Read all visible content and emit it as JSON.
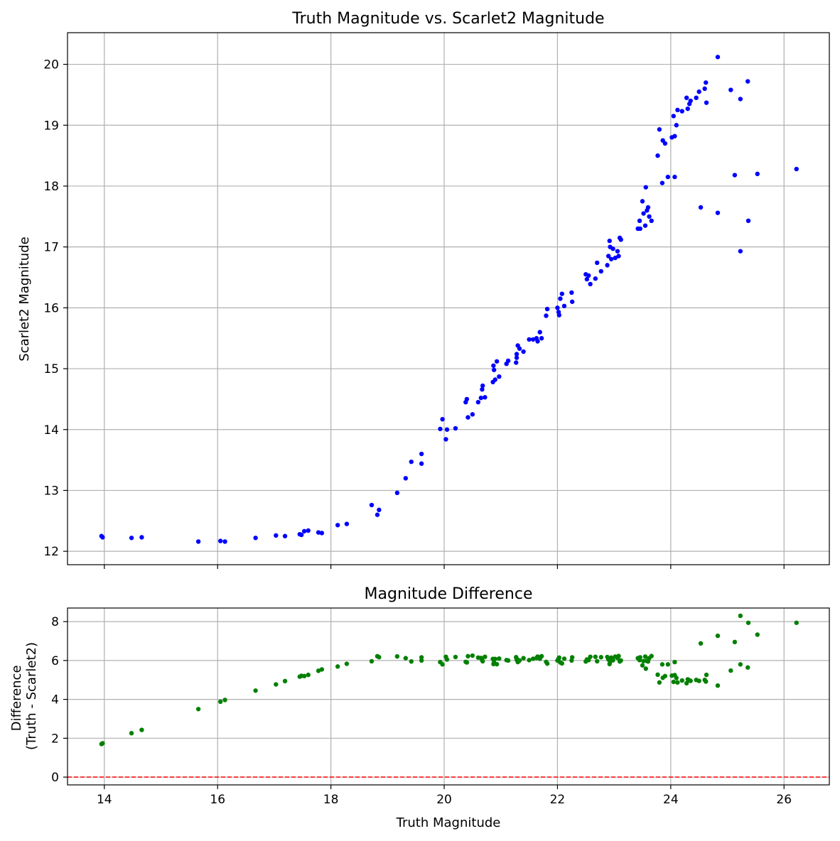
{
  "chart_data": [
    {
      "type": "scatter",
      "title": "Truth Magnitude vs. Scarlet2 Magnitude",
      "xlabel": "",
      "ylabel": "Scarlet2 Magnitude",
      "xlim": [
        13.35,
        26.8
      ],
      "ylim": [
        11.78,
        20.52
      ],
      "xticks": [
        14,
        16,
        18,
        20,
        22,
        24,
        26
      ],
      "yticks": [
        12,
        13,
        14,
        15,
        16,
        17,
        18,
        19,
        20
      ],
      "show_xtick_labels": false,
      "grid": true,
      "color": "#0000ff",
      "series": [
        {
          "points": [
            [
              13.95,
              12.25
            ],
            [
              13.97,
              12.23
            ],
            [
              14.48,
              12.22
            ],
            [
              14.66,
              12.23
            ],
            [
              15.66,
              12.16
            ],
            [
              16.05,
              12.17
            ],
            [
              16.13,
              12.16
            ],
            [
              16.67,
              12.22
            ],
            [
              17.03,
              12.26
            ],
            [
              17.19,
              12.25
            ],
            [
              17.45,
              12.28
            ],
            [
              17.48,
              12.27
            ],
            [
              17.53,
              12.33
            ],
            [
              17.6,
              12.34
            ],
            [
              17.78,
              12.31
            ],
            [
              17.84,
              12.3
            ],
            [
              18.12,
              12.43
            ],
            [
              18.28,
              12.45
            ],
            [
              18.72,
              12.76
            ],
            [
              18.82,
              12.6
            ],
            [
              18.85,
              12.68
            ],
            [
              19.17,
              12.96
            ],
            [
              19.32,
              13.2
            ],
            [
              19.42,
              13.47
            ],
            [
              19.6,
              13.6
            ],
            [
              19.6,
              13.44
            ],
            [
              19.93,
              14.01
            ],
            [
              19.97,
              14.17
            ],
            [
              20.03,
              13.84
            ],
            [
              20.05,
              14.0
            ],
            [
              20.2,
              14.02
            ],
            [
              20.38,
              14.45
            ],
            [
              20.4,
              14.5
            ],
            [
              20.42,
              14.2
            ],
            [
              20.5,
              14.25
            ],
            [
              20.6,
              14.45
            ],
            [
              20.65,
              14.52
            ],
            [
              20.67,
              14.66
            ],
            [
              20.68,
              14.72
            ],
            [
              20.72,
              14.53
            ],
            [
              20.86,
              14.78
            ],
            [
              20.87,
              15.05
            ],
            [
              20.88,
              14.98
            ],
            [
              20.9,
              14.82
            ],
            [
              20.93,
              15.12
            ],
            [
              20.97,
              14.87
            ],
            [
              21.1,
              15.08
            ],
            [
              21.13,
              15.13
            ],
            [
              21.27,
              15.1
            ],
            [
              21.28,
              15.18
            ],
            [
              21.28,
              15.24
            ],
            [
              21.3,
              15.38
            ],
            [
              21.33,
              15.33
            ],
            [
              21.4,
              15.28
            ],
            [
              21.5,
              15.48
            ],
            [
              21.57,
              15.48
            ],
            [
              21.63,
              15.5
            ],
            [
              21.65,
              15.45
            ],
            [
              21.69,
              15.6
            ],
            [
              21.72,
              15.5
            ],
            [
              21.8,
              15.87
            ],
            [
              21.82,
              15.98
            ],
            [
              22.0,
              16.0
            ],
            [
              22.02,
              15.93
            ],
            [
              22.03,
              15.88
            ],
            [
              22.05,
              16.15
            ],
            [
              22.08,
              16.23
            ],
            [
              22.12,
              16.03
            ],
            [
              22.25,
              16.25
            ],
            [
              22.26,
              16.1
            ],
            [
              22.5,
              16.55
            ],
            [
              22.52,
              16.47
            ],
            [
              22.55,
              16.53
            ],
            [
              22.58,
              16.39
            ],
            [
              22.67,
              16.48
            ],
            [
              22.7,
              16.74
            ],
            [
              22.77,
              16.6
            ],
            [
              22.88,
              16.7
            ],
            [
              22.9,
              16.85
            ],
            [
              22.92,
              17.1
            ],
            [
              22.93,
              17.0
            ],
            [
              22.95,
              16.8
            ],
            [
              22.98,
              16.97
            ],
            [
              23.02,
              16.82
            ],
            [
              23.06,
              16.93
            ],
            [
              23.1,
              17.15
            ],
            [
              23.12,
              17.12
            ],
            [
              23.08,
              16.85
            ],
            [
              23.42,
              17.3
            ],
            [
              23.45,
              17.43
            ],
            [
              23.46,
              17.3
            ],
            [
              23.5,
              17.75
            ],
            [
              23.52,
              17.55
            ],
            [
              23.55,
              17.35
            ],
            [
              23.56,
              17.98
            ],
            [
              23.58,
              17.6
            ],
            [
              23.6,
              17.65
            ],
            [
              23.62,
              17.5
            ],
            [
              23.66,
              17.43
            ],
            [
              23.77,
              18.5
            ],
            [
              23.8,
              18.93
            ],
            [
              23.85,
              18.05
            ],
            [
              23.86,
              18.75
            ],
            [
              23.9,
              18.7
            ],
            [
              23.95,
              18.15
            ],
            [
              24.02,
              18.8
            ],
            [
              24.05,
              19.15
            ],
            [
              24.07,
              18.82
            ],
            [
              24.07,
              18.15
            ],
            [
              24.1,
              19.0
            ],
            [
              24.12,
              19.25
            ],
            [
              24.2,
              19.23
            ],
            [
              24.28,
              19.45
            ],
            [
              24.3,
              19.27
            ],
            [
              24.33,
              19.35
            ],
            [
              24.35,
              19.4
            ],
            [
              24.45,
              19.45
            ],
            [
              24.5,
              19.55
            ],
            [
              24.53,
              17.65
            ],
            [
              24.6,
              19.6
            ],
            [
              24.62,
              19.7
            ],
            [
              24.63,
              19.37
            ],
            [
              24.83,
              20.12
            ],
            [
              24.83,
              17.56
            ],
            [
              25.06,
              19.58
            ],
            [
              25.13,
              18.18
            ],
            [
              25.23,
              19.43
            ],
            [
              25.23,
              16.93
            ],
            [
              25.36,
              19.72
            ],
            [
              25.37,
              17.43
            ],
            [
              25.53,
              18.2
            ],
            [
              26.22,
              18.28
            ]
          ]
        }
      ]
    },
    {
      "type": "scatter",
      "title": "Magnitude Difference",
      "xlabel": "Truth Magnitude",
      "ylabel": "Difference\n(Truth - Scarlet2)",
      "xlim": [
        13.35,
        26.8
      ],
      "ylim": [
        -0.4,
        8.7
      ],
      "xticks": [
        14,
        16,
        18,
        20,
        22,
        24,
        26
      ],
      "yticks": [
        0,
        2,
        4,
        6,
        8
      ],
      "show_xtick_labels": true,
      "grid": true,
      "color": "#008000",
      "reference_line": {
        "y": 0,
        "color": "#ff0000",
        "style": "dashed"
      },
      "series": [
        {
          "points": [
            [
              13.95,
              1.7
            ],
            [
              13.97,
              1.74
            ],
            [
              14.48,
              2.26
            ],
            [
              14.66,
              2.43
            ],
            [
              15.66,
              3.5
            ],
            [
              16.05,
              3.88
            ],
            [
              16.13,
              3.97
            ],
            [
              16.67,
              4.45
            ],
            [
              17.03,
              4.77
            ],
            [
              17.19,
              4.94
            ],
            [
              17.45,
              5.17
            ],
            [
              17.48,
              5.21
            ],
            [
              17.53,
              5.2
            ],
            [
              17.6,
              5.26
            ],
            [
              17.78,
              5.47
            ],
            [
              17.84,
              5.54
            ],
            [
              18.12,
              5.69
            ],
            [
              18.28,
              5.83
            ],
            [
              18.72,
              5.96
            ],
            [
              18.82,
              6.22
            ],
            [
              18.85,
              6.17
            ],
            [
              19.17,
              6.21
            ],
            [
              19.32,
              6.12
            ],
            [
              19.42,
              5.95
            ],
            [
              19.6,
              6.0
            ],
            [
              19.6,
              6.16
            ],
            [
              19.93,
              5.92
            ],
            [
              19.97,
              5.8
            ],
            [
              20.03,
              6.19
            ],
            [
              20.05,
              6.05
            ],
            [
              20.2,
              6.18
            ],
            [
              20.38,
              5.93
            ],
            [
              20.4,
              5.9
            ],
            [
              20.42,
              6.22
            ],
            [
              20.5,
              6.25
            ],
            [
              20.6,
              6.15
            ],
            [
              20.65,
              6.13
            ],
            [
              20.67,
              6.01
            ],
            [
              20.68,
              5.96
            ],
            [
              20.72,
              6.19
            ],
            [
              20.86,
              6.08
            ],
            [
              20.87,
              5.82
            ],
            [
              20.88,
              5.9
            ],
            [
              20.9,
              6.08
            ],
            [
              20.93,
              5.81
            ],
            [
              20.97,
              6.1
            ],
            [
              21.1,
              6.02
            ],
            [
              21.13,
              6.0
            ],
            [
              21.27,
              6.17
            ],
            [
              21.28,
              6.1
            ],
            [
              21.28,
              6.04
            ],
            [
              21.3,
              5.92
            ],
            [
              21.33,
              6.0
            ],
            [
              21.4,
              6.12
            ],
            [
              21.5,
              6.02
            ],
            [
              21.57,
              6.09
            ],
            [
              21.63,
              6.13
            ],
            [
              21.65,
              6.2
            ],
            [
              21.69,
              6.09
            ],
            [
              21.72,
              6.22
            ],
            [
              21.8,
              5.93
            ],
            [
              21.82,
              5.84
            ],
            [
              22.0,
              6.0
            ],
            [
              22.02,
              6.09
            ],
            [
              22.03,
              6.15
            ],
            [
              22.05,
              5.9
            ],
            [
              22.08,
              5.85
            ],
            [
              22.12,
              6.09
            ],
            [
              22.25,
              6.0
            ],
            [
              22.26,
              6.16
            ],
            [
              22.5,
              5.95
            ],
            [
              22.52,
              6.05
            ],
            [
              22.55,
              6.02
            ],
            [
              22.58,
              6.19
            ],
            [
              22.67,
              6.19
            ],
            [
              22.7,
              5.96
            ],
            [
              22.77,
              6.17
            ],
            [
              22.88,
              6.18
            ],
            [
              22.9,
              6.05
            ],
            [
              22.92,
              5.82
            ],
            [
              22.93,
              5.93
            ],
            [
              22.95,
              6.15
            ],
            [
              22.98,
              6.01
            ],
            [
              23.02,
              6.2
            ],
            [
              23.06,
              6.13
            ],
            [
              23.1,
              5.95
            ],
            [
              23.12,
              6.0
            ],
            [
              23.08,
              6.23
            ],
            [
              23.42,
              6.12
            ],
            [
              23.45,
              6.02
            ],
            [
              23.46,
              6.16
            ],
            [
              23.5,
              5.75
            ],
            [
              23.52,
              5.97
            ],
            [
              23.55,
              6.2
            ],
            [
              23.56,
              5.58
            ],
            [
              23.58,
              5.98
            ],
            [
              23.6,
              5.95
            ],
            [
              23.62,
              6.12
            ],
            [
              23.66,
              6.23
            ],
            [
              23.77,
              5.27
            ],
            [
              23.8,
              4.87
            ],
            [
              23.85,
              5.8
            ],
            [
              23.86,
              5.11
            ],
            [
              23.9,
              5.2
            ],
            [
              23.95,
              5.8
            ],
            [
              24.02,
              5.22
            ],
            [
              24.05,
              4.9
            ],
            [
              24.07,
              5.25
            ],
            [
              24.07,
              5.92
            ],
            [
              24.1,
              5.1
            ],
            [
              24.12,
              4.87
            ],
            [
              24.2,
              4.97
            ],
            [
              24.28,
              4.83
            ],
            [
              24.3,
              5.03
            ],
            [
              24.33,
              4.98
            ],
            [
              24.35,
              4.95
            ],
            [
              24.45,
              5.0
            ],
            [
              24.5,
              4.95
            ],
            [
              24.53,
              6.88
            ],
            [
              24.6,
              5.0
            ],
            [
              24.62,
              4.92
            ],
            [
              24.63,
              5.26
            ],
            [
              24.83,
              4.71
            ],
            [
              24.83,
              7.27
            ],
            [
              25.06,
              5.48
            ],
            [
              25.13,
              6.95
            ],
            [
              25.23,
              5.8
            ],
            [
              25.23,
              8.3
            ],
            [
              25.36,
              5.64
            ],
            [
              25.37,
              7.94
            ],
            [
              25.53,
              7.33
            ],
            [
              26.22,
              7.94
            ]
          ]
        }
      ]
    }
  ]
}
